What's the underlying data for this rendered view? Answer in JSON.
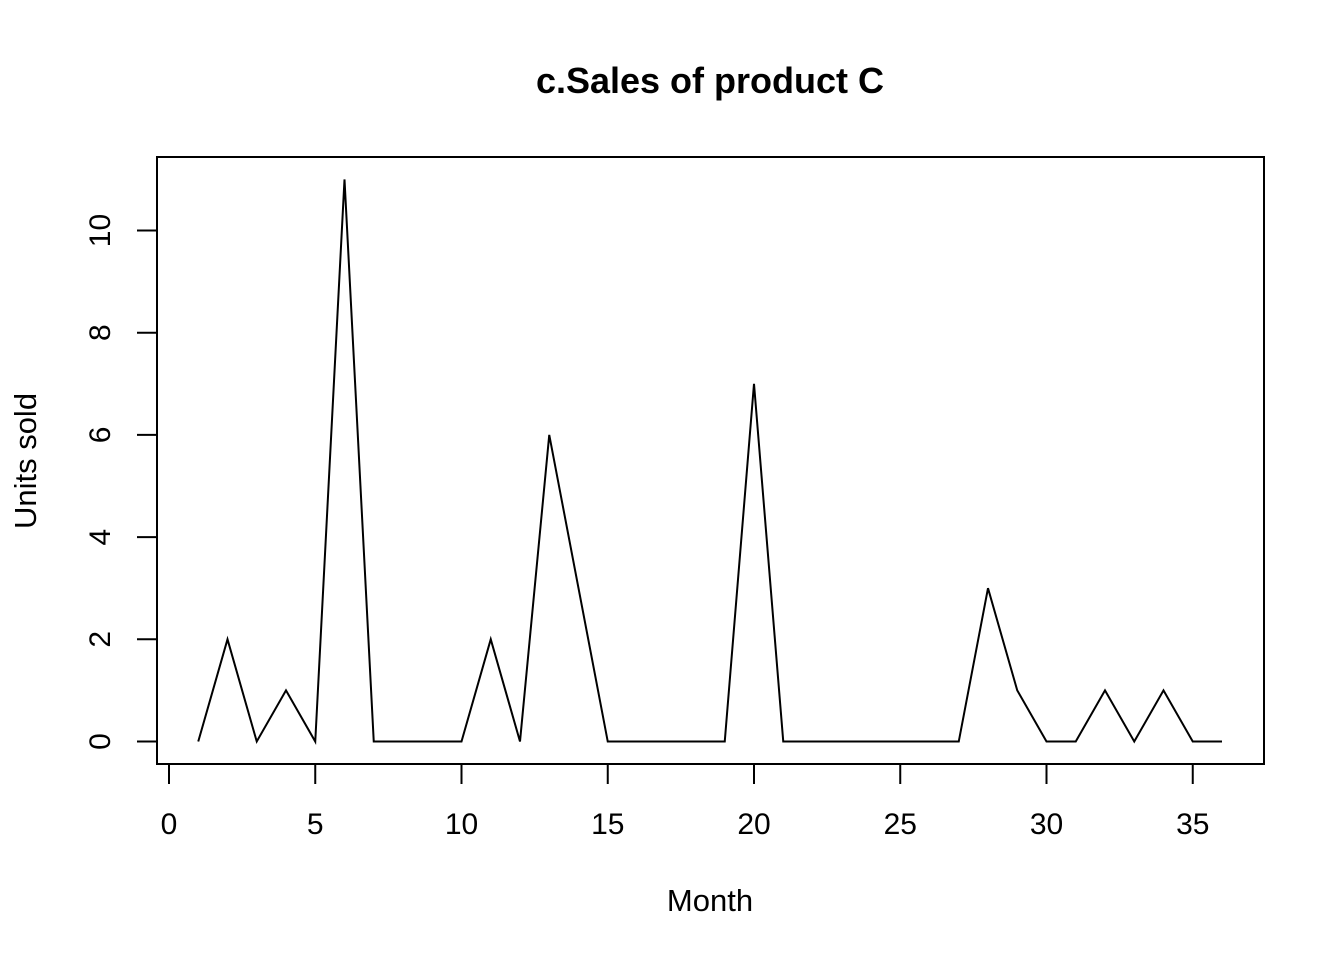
{
  "chart_data": {
    "type": "line",
    "title": "c.Sales of product C",
    "xlabel": "Month",
    "ylabel": "Units sold",
    "xlim": [
      0,
      37
    ],
    "ylim": [
      -0.4,
      11.5
    ],
    "x_ticks": [
      0,
      5,
      10,
      15,
      20,
      25,
      30,
      35
    ],
    "y_ticks": [
      0,
      2,
      4,
      6,
      8,
      10
    ],
    "grid": false,
    "legend": "none",
    "series": [
      {
        "color": "#000000",
        "x": [
          1,
          2,
          3,
          4,
          5,
          6,
          7,
          8,
          9,
          10,
          11,
          12,
          13,
          14,
          15,
          16,
          17,
          18,
          19,
          20,
          21,
          22,
          23,
          24,
          25,
          26,
          27,
          28,
          29,
          30,
          31,
          32,
          33,
          34,
          35,
          36
        ],
        "y": [
          0,
          2,
          0,
          1,
          0,
          11,
          0,
          0,
          0,
          0,
          2,
          0,
          6,
          3,
          0,
          0,
          0,
          0,
          0,
          7,
          0,
          0,
          0,
          0,
          0,
          0,
          0,
          3,
          1,
          0,
          0,
          1,
          0,
          1,
          0,
          0
        ]
      }
    ]
  }
}
